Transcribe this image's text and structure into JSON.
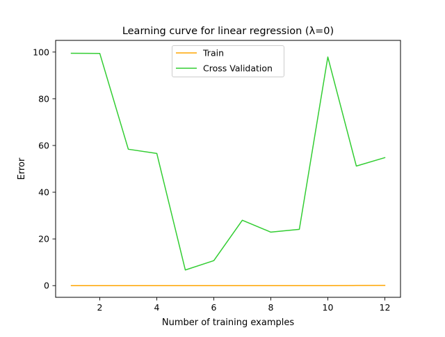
{
  "chart_data": {
    "type": "line",
    "title": "Learning curve for linear regression (λ=0)",
    "xlabel": "Number of training examples",
    "ylabel": "Error",
    "xlim": [
      0.45,
      12.55
    ],
    "ylim": [
      -5,
      105
    ],
    "xticks": [
      2,
      4,
      6,
      8,
      10,
      12
    ],
    "yticks": [
      0,
      20,
      40,
      60,
      80,
      100
    ],
    "grid": false,
    "legend_position": "upper center",
    "x": [
      1,
      2,
      3,
      4,
      5,
      6,
      7,
      8,
      9,
      10,
      11,
      12
    ],
    "series": [
      {
        "name": "Train",
        "color": "#ffa500",
        "values": [
          0.0,
          0.0,
          0.0,
          0.0,
          0.0,
          0.0,
          0.0,
          0.0,
          0.0,
          0.0,
          0.05,
          0.1
        ]
      },
      {
        "name": "Cross Validation",
        "color": "#32cd32",
        "values": [
          99.5,
          99.4,
          58.4,
          56.6,
          6.7,
          10.7,
          28.0,
          22.9,
          24.1,
          97.9,
          51.2,
          54.8
        ]
      }
    ]
  }
}
